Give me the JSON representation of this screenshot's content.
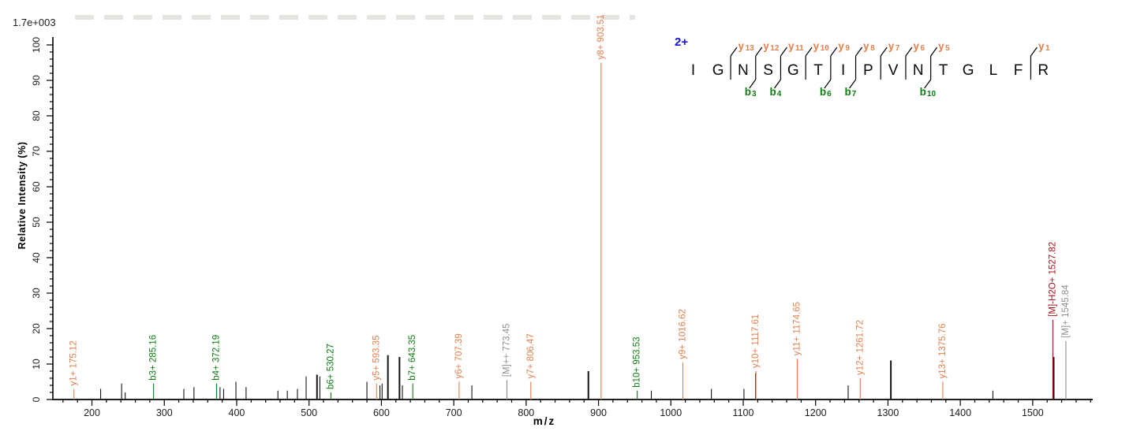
{
  "chart_data": {
    "type": "bar",
    "subtype": "ms2-peptide-fragmentation-spectrum",
    "title": "",
    "xlabel": "m/z",
    "ylabel": "Relative  Intensity (%)",
    "intensity_scale": "1.7e+003",
    "x_axis": {
      "min": 146,
      "max": 1583,
      "major_ticks": [
        200,
        300,
        400,
        500,
        600,
        700,
        800,
        900,
        1000,
        1100,
        1200,
        1300,
        1400,
        1500
      ],
      "minor_step": 20,
      "major_step": 100
    },
    "y_axis": {
      "min": 0,
      "max": 100,
      "major_ticks": [
        0,
        10,
        20,
        30,
        40,
        50,
        60,
        70,
        80,
        90,
        100
      ],
      "minor_step": 2,
      "major_step": 10
    },
    "labeled_peaks": [
      {
        "label": "y1+ 175.12",
        "mz": 175.12,
        "intensity_pct": 3,
        "ion": "y"
      },
      {
        "label": "b3+ 285.16",
        "mz": 285.16,
        "intensity_pct": 4.5,
        "ion": "b"
      },
      {
        "label": "b4+ 372.19",
        "mz": 372.19,
        "intensity_pct": 4.5,
        "ion": "b"
      },
      {
        "label": "b6+ 530.27",
        "mz": 530.27,
        "intensity_pct": 2,
        "ion": "b"
      },
      {
        "label": "y5+ 593.35",
        "mz": 593.35,
        "intensity_pct": 4.5,
        "ion": "y"
      },
      {
        "label": "b7+ 643.35",
        "mz": 643.35,
        "intensity_pct": 4.5,
        "ion": "b"
      },
      {
        "label": "y6+ 707.39",
        "mz": 707.39,
        "intensity_pct": 5,
        "ion": "y"
      },
      {
        "label": "[M]++ 773.45",
        "mz": 773.45,
        "intensity_pct": 5.5,
        "ion": "precursor"
      },
      {
        "label": "y7+ 806.47",
        "mz": 806.47,
        "intensity_pct": 5,
        "ion": "y"
      },
      {
        "label": "y8+ 903.51",
        "mz": 903.51,
        "intensity_pct": 95,
        "ion": "y"
      },
      {
        "label": "b10+ 953.53",
        "mz": 953.53,
        "intensity_pct": 2.5,
        "ion": "b"
      },
      {
        "label": "y9+ 1016.62",
        "mz": 1016.62,
        "intensity_pct": 10.5,
        "ion": "y"
      },
      {
        "label": "y10+ 1117.61",
        "mz": 1117.61,
        "intensity_pct": 8,
        "ion": "y"
      },
      {
        "label": "y11+ 1174.65",
        "mz": 1174.65,
        "intensity_pct": 11.5,
        "ion": "y"
      },
      {
        "label": "y12+ 1261.72",
        "mz": 1261.72,
        "intensity_pct": 6,
        "ion": "y"
      },
      {
        "label": "y13+ 1375.76",
        "mz": 1375.76,
        "intensity_pct": 5,
        "ion": "y"
      },
      {
        "label": "[M]-H2O+ 1527.82",
        "mz": 1527.82,
        "intensity_pct": 22.5,
        "ion": "precursor_loss"
      },
      {
        "label": "[M]+ 1545.84",
        "mz": 1545.84,
        "intensity_pct": 16.5,
        "ion": "precursor"
      }
    ],
    "unlabeled_peaks": [
      {
        "mz": 212,
        "pct": 3
      },
      {
        "mz": 241,
        "pct": 4.5
      },
      {
        "mz": 246,
        "pct": 2
      },
      {
        "mz": 327,
        "pct": 3
      },
      {
        "mz": 341,
        "pct": 3.5
      },
      {
        "mz": 377,
        "pct": 3.5
      },
      {
        "mz": 382,
        "pct": 3
      },
      {
        "mz": 399,
        "pct": 5
      },
      {
        "mz": 413,
        "pct": 3.5
      },
      {
        "mz": 457,
        "pct": 2.5
      },
      {
        "mz": 470,
        "pct": 2.5
      },
      {
        "mz": 484,
        "pct": 3
      },
      {
        "mz": 496,
        "pct": 6.5
      },
      {
        "mz": 511,
        "pct": 7,
        "w": 2
      },
      {
        "mz": 515,
        "pct": 6.5
      },
      {
        "mz": 580,
        "pct": 5
      },
      {
        "mz": 598,
        "pct": 4
      },
      {
        "mz": 601,
        "pct": 4.5
      },
      {
        "mz": 609,
        "pct": 12.5,
        "w": 2
      },
      {
        "mz": 625,
        "pct": 12,
        "w": 2
      },
      {
        "mz": 629,
        "pct": 4
      },
      {
        "mz": 725,
        "pct": 4
      },
      {
        "mz": 886,
        "pct": 8,
        "w": 2
      },
      {
        "mz": 973,
        "pct": 2.5
      },
      {
        "mz": 1056,
        "pct": 3
      },
      {
        "mz": 1101,
        "pct": 3
      },
      {
        "mz": 1117,
        "pct": 7.5
      },
      {
        "mz": 1245,
        "pct": 4
      },
      {
        "mz": 1304,
        "pct": 11,
        "w": 2
      },
      {
        "mz": 1445,
        "pct": 2.5
      },
      {
        "mz": 1529,
        "pct": 12,
        "w": 2
      }
    ]
  },
  "peptide": {
    "charge": "2+",
    "sequence": "IGNSGTIPVNTGLFR",
    "y_ions": [
      {
        "number": 13,
        "after": 2
      },
      {
        "number": 12,
        "after": 3
      },
      {
        "number": 11,
        "after": 4
      },
      {
        "number": 10,
        "after": 5
      },
      {
        "number": 9,
        "after": 6
      },
      {
        "number": 8,
        "after": 7
      },
      {
        "number": 7,
        "after": 8
      },
      {
        "number": 6,
        "after": 9
      },
      {
        "number": 5,
        "after": 10
      },
      {
        "number": 1,
        "after": 14
      }
    ],
    "b_ions": [
      {
        "number": 3,
        "after": 3
      },
      {
        "number": 4,
        "after": 4
      },
      {
        "number": 6,
        "after": 6
      },
      {
        "number": 7,
        "after": 7
      },
      {
        "number": 10,
        "after": 10
      }
    ]
  },
  "colors": {
    "y_ion": "#E2804E",
    "b_ion": "#0E7C12",
    "precursor": "#8F8F8F",
    "precursor_loss": "#A5131C",
    "peak": "#141414",
    "charge": "#1414CC",
    "axis": "#000000"
  }
}
